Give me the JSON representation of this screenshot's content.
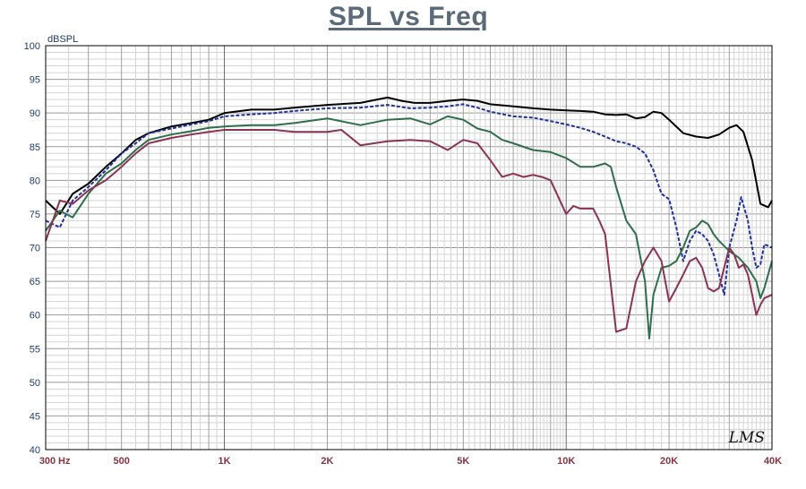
{
  "chart_data": {
    "type": "line",
    "title": "SPL vs Freq",
    "ylabel": "dBSPL",
    "xscale": "log",
    "xlim": [
      300,
      40000
    ],
    "ylim": [
      40,
      100
    ],
    "grid": true,
    "watermark": "LMS",
    "y_ticks": [
      "100",
      "95",
      "90",
      "85",
      "80",
      "75",
      "70",
      "65",
      "60",
      "55",
      "50",
      "45",
      "40"
    ],
    "y_tick_values": [
      100,
      95,
      90,
      85,
      80,
      75,
      70,
      65,
      60,
      55,
      50,
      45,
      40
    ],
    "x_ticks": [
      "300",
      "500",
      "1K",
      "2K",
      "5K",
      "10K",
      "20K",
      "40K"
    ],
    "x_tick_values": [
      300,
      500,
      1000,
      2000,
      5000,
      10000,
      20000,
      40000
    ],
    "x_unit": "Hz",
    "series": [
      {
        "color": "#000000",
        "dash": "solid",
        "points": [
          [
            300,
            77
          ],
          [
            330,
            75
          ],
          [
            360,
            78
          ],
          [
            400,
            79.5
          ],
          [
            450,
            82
          ],
          [
            500,
            84
          ],
          [
            550,
            86
          ],
          [
            600,
            87
          ],
          [
            700,
            88
          ],
          [
            800,
            88.5
          ],
          [
            900,
            89
          ],
          [
            1000,
            90
          ],
          [
            1200,
            90.5
          ],
          [
            1400,
            90.5
          ],
          [
            1600,
            90.8
          ],
          [
            2000,
            91.2
          ],
          [
            2500,
            91.5
          ],
          [
            2800,
            92
          ],
          [
            3000,
            92.3
          ],
          [
            3300,
            91.8
          ],
          [
            3600,
            91.5
          ],
          [
            4000,
            91.5
          ],
          [
            4500,
            91.8
          ],
          [
            5000,
            92
          ],
          [
            5500,
            91.8
          ],
          [
            6000,
            91.3
          ],
          [
            7000,
            91
          ],
          [
            8000,
            90.7
          ],
          [
            9000,
            90.5
          ],
          [
            10000,
            90.4
          ],
          [
            11000,
            90.3
          ],
          [
            12000,
            90.2
          ],
          [
            13000,
            89.8
          ],
          [
            14000,
            89.7
          ],
          [
            15000,
            89.8
          ],
          [
            16000,
            89.2
          ],
          [
            17000,
            89.4
          ],
          [
            18000,
            90.2
          ],
          [
            19000,
            90
          ],
          [
            20000,
            89
          ],
          [
            22000,
            87
          ],
          [
            24000,
            86.5
          ],
          [
            26000,
            86.3
          ],
          [
            28000,
            86.8
          ],
          [
            30000,
            87.8
          ],
          [
            31500,
            88.2
          ],
          [
            33000,
            87.2
          ],
          [
            35000,
            83
          ],
          [
            37000,
            76.5
          ],
          [
            39000,
            76
          ],
          [
            40000,
            77
          ]
        ]
      },
      {
        "color": "#1e2fa0",
        "dash": "dashed",
        "points": [
          [
            300,
            74
          ],
          [
            330,
            73
          ],
          [
            360,
            77
          ],
          [
            400,
            79
          ],
          [
            450,
            81.5
          ],
          [
            500,
            84
          ],
          [
            550,
            85.5
          ],
          [
            600,
            87
          ],
          [
            700,
            87.7
          ],
          [
            800,
            88.3
          ],
          [
            900,
            88.8
          ],
          [
            1000,
            89.5
          ],
          [
            1200,
            89.8
          ],
          [
            1400,
            90
          ],
          [
            1600,
            90.3
          ],
          [
            2000,
            90.7
          ],
          [
            2500,
            90.8
          ],
          [
            3000,
            91.2
          ],
          [
            3500,
            90.7
          ],
          [
            4000,
            90.8
          ],
          [
            4500,
            91
          ],
          [
            5000,
            91.3
          ],
          [
            5500,
            90.8
          ],
          [
            6000,
            90.2
          ],
          [
            7000,
            89.5
          ],
          [
            8000,
            89.3
          ],
          [
            9000,
            88.8
          ],
          [
            10000,
            88.3
          ],
          [
            11000,
            87.8
          ],
          [
            12000,
            87.2
          ],
          [
            13000,
            86.5
          ],
          [
            14000,
            85.8
          ],
          [
            15000,
            85.5
          ],
          [
            16000,
            85
          ],
          [
            17000,
            84
          ],
          [
            18000,
            81.5
          ],
          [
            19000,
            78
          ],
          [
            20000,
            77.2
          ],
          [
            21000,
            73
          ],
          [
            22000,
            68
          ],
          [
            23000,
            71
          ],
          [
            24000,
            72.5
          ],
          [
            25000,
            72
          ],
          [
            26000,
            71
          ],
          [
            27000,
            69
          ],
          [
            28000,
            66
          ],
          [
            29000,
            63
          ],
          [
            30000,
            70
          ],
          [
            31500,
            74
          ],
          [
            32500,
            77.5
          ],
          [
            34000,
            74
          ],
          [
            35000,
            70
          ],
          [
            36000,
            67
          ],
          [
            37000,
            67.5
          ],
          [
            38000,
            70.5
          ],
          [
            40000,
            70
          ]
        ]
      },
      {
        "color": "#2f6e4a",
        "dash": "solid",
        "points": [
          [
            300,
            72.5
          ],
          [
            330,
            75.5
          ],
          [
            360,
            74.5
          ],
          [
            400,
            78
          ],
          [
            450,
            81
          ],
          [
            500,
            82.5
          ],
          [
            550,
            84.5
          ],
          [
            600,
            86
          ],
          [
            700,
            86.8
          ],
          [
            800,
            87.3
          ],
          [
            900,
            87.8
          ],
          [
            1000,
            88
          ],
          [
            1200,
            88.2
          ],
          [
            1400,
            88.2
          ],
          [
            1600,
            88.5
          ],
          [
            2000,
            89.2
          ],
          [
            2500,
            88.2
          ],
          [
            3000,
            89
          ],
          [
            3500,
            89.2
          ],
          [
            4000,
            88.3
          ],
          [
            4500,
            89.5
          ],
          [
            5000,
            89
          ],
          [
            5500,
            87.7
          ],
          [
            6000,
            87.2
          ],
          [
            6500,
            86
          ],
          [
            7000,
            85.5
          ],
          [
            8000,
            84.5
          ],
          [
            9000,
            84.2
          ],
          [
            10000,
            83.3
          ],
          [
            11000,
            82
          ],
          [
            12000,
            82
          ],
          [
            13000,
            82.5
          ],
          [
            13500,
            82
          ],
          [
            14000,
            79
          ],
          [
            15000,
            74
          ],
          [
            16000,
            72
          ],
          [
            17000,
            65
          ],
          [
            17500,
            56.5
          ],
          [
            18000,
            63
          ],
          [
            19000,
            67
          ],
          [
            20000,
            67.3
          ],
          [
            21000,
            68
          ],
          [
            22000,
            70
          ],
          [
            23000,
            72.5
          ],
          [
            24000,
            73
          ],
          [
            25000,
            74
          ],
          [
            26000,
            73.5
          ],
          [
            27000,
            72
          ],
          [
            28000,
            71
          ],
          [
            30000,
            69.5
          ],
          [
            32000,
            68.5
          ],
          [
            34000,
            67
          ],
          [
            36000,
            65
          ],
          [
            37000,
            62.5
          ],
          [
            38000,
            64
          ],
          [
            40000,
            68
          ]
        ]
      },
      {
        "color": "#8a3355",
        "dash": "solid",
        "points": [
          [
            300,
            71
          ],
          [
            330,
            77
          ],
          [
            360,
            76.5
          ],
          [
            400,
            78.5
          ],
          [
            450,
            80
          ],
          [
            500,
            82
          ],
          [
            550,
            84
          ],
          [
            600,
            85.5
          ],
          [
            700,
            86.3
          ],
          [
            800,
            86.8
          ],
          [
            900,
            87.2
          ],
          [
            1000,
            87.5
          ],
          [
            1200,
            87.5
          ],
          [
            1400,
            87.5
          ],
          [
            1600,
            87.2
          ],
          [
            2000,
            87.2
          ],
          [
            2200,
            87.5
          ],
          [
            2500,
            85.2
          ],
          [
            3000,
            85.8
          ],
          [
            3500,
            86
          ],
          [
            4000,
            85.8
          ],
          [
            4500,
            84.5
          ],
          [
            5000,
            86
          ],
          [
            5500,
            85.5
          ],
          [
            6000,
            83
          ],
          [
            6500,
            80.5
          ],
          [
            7000,
            81
          ],
          [
            7500,
            80.5
          ],
          [
            8000,
            80.8
          ],
          [
            8500,
            80.5
          ],
          [
            9000,
            80
          ],
          [
            10000,
            75
          ],
          [
            10500,
            76.2
          ],
          [
            11000,
            75.8
          ],
          [
            12000,
            75.8
          ],
          [
            12500,
            74
          ],
          [
            13000,
            72
          ],
          [
            14000,
            57.5
          ],
          [
            15000,
            58
          ],
          [
            16000,
            65
          ],
          [
            17000,
            68
          ],
          [
            18000,
            70
          ],
          [
            19000,
            68
          ],
          [
            20000,
            62
          ],
          [
            21000,
            64
          ],
          [
            22000,
            66
          ],
          [
            23000,
            68
          ],
          [
            24000,
            68.5
          ],
          [
            25000,
            67
          ],
          [
            26000,
            64
          ],
          [
            27000,
            63.5
          ],
          [
            28000,
            64
          ],
          [
            30000,
            70
          ],
          [
            31000,
            69
          ],
          [
            32000,
            67
          ],
          [
            33000,
            67.5
          ],
          [
            34000,
            66
          ],
          [
            35000,
            63
          ],
          [
            36000,
            60
          ],
          [
            37000,
            61.5
          ],
          [
            38000,
            62.5
          ],
          [
            40000,
            63
          ]
        ]
      }
    ]
  }
}
